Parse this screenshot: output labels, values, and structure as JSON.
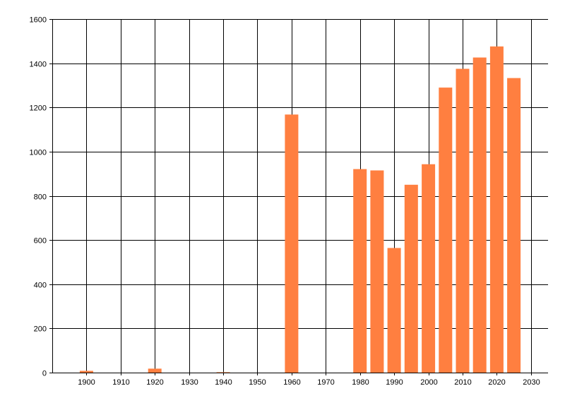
{
  "chart_data": {
    "type": "bar",
    "title": "",
    "xlabel": "",
    "ylabel": "",
    "x": [
      1900,
      1920,
      1940,
      1960,
      1980,
      1985,
      1990,
      1995,
      2000,
      2005,
      2010,
      2015,
      2020,
      2025
    ],
    "values": [
      8,
      18,
      2,
      1168,
      921,
      915,
      564,
      850,
      943,
      1290,
      1375,
      1426,
      1476,
      1333
    ],
    "xlim": [
      1890,
      2035
    ],
    "ylim": [
      0,
      1600
    ],
    "x_ticks": [
      1900,
      1910,
      1920,
      1930,
      1940,
      1950,
      1960,
      1970,
      1980,
      1990,
      2000,
      2010,
      2020,
      2030
    ],
    "y_ticks": [
      0,
      200,
      400,
      600,
      800,
      1000,
      1200,
      1400,
      1600
    ],
    "x_tick_labels": [
      "1900",
      "1910",
      "1920",
      "1930",
      "1940",
      "1950",
      "1960",
      "1970",
      "1980",
      "1990",
      "2000",
      "2010",
      "2020",
      "2030"
    ],
    "y_tick_labels": [
      "0",
      "200",
      "400",
      "600",
      "800",
      "1000",
      "1200",
      "1400",
      "1600"
    ],
    "grid": true,
    "legend": "none",
    "bar_color": "#ff7f40",
    "grid_color": "#000000"
  }
}
